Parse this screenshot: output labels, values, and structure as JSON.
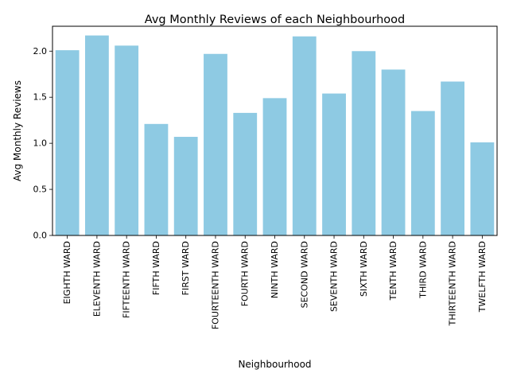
{
  "chart_data": {
    "type": "bar",
    "title": "Avg Monthly Reviews of each Neighbourhood",
    "xlabel": "Neighbourhood",
    "ylabel": "Avg Monthly Reviews",
    "categories": [
      "EIGHTH WARD",
      "ELEVENTH WARD",
      "FIFTEENTH WARD",
      "FIFTH WARD",
      "FIRST WARD",
      "FOURTEENTH WARD",
      "FOURTH WARD",
      "NINTH WARD",
      "SECOND WARD",
      "SEVENTH WARD",
      "SIXTH WARD",
      "TENTH WARD",
      "THIRD WARD",
      "THIRTEENTH WARD",
      "TWELFTH WARD"
    ],
    "values": [
      2.01,
      2.17,
      2.06,
      1.21,
      1.07,
      1.97,
      1.33,
      1.49,
      2.16,
      1.54,
      2.0,
      1.8,
      1.35,
      1.67,
      1.01
    ],
    "ylim": [
      0,
      2.27
    ],
    "yticks": [
      0.0,
      0.5,
      1.0,
      1.5,
      2.0
    ],
    "ytick_labels": [
      "0.0",
      "0.5",
      "1.0",
      "1.5",
      "2.0"
    ],
    "bar_color": "#8ecae3",
    "grid": false,
    "legend": "none"
  }
}
